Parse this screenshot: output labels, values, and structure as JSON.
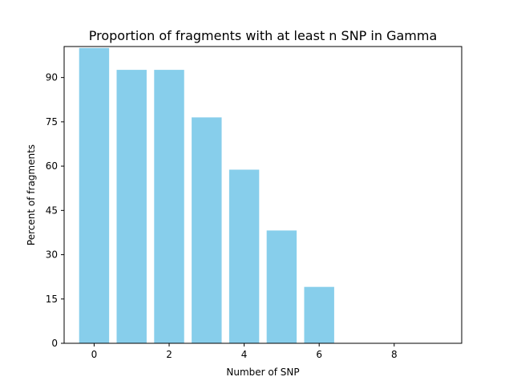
{
  "chart_data": {
    "type": "bar",
    "title": "Proportion of fragments with at least n SNP in Gamma",
    "xlabel": "Number of SNP",
    "ylabel": "Percent of fragments",
    "x": [
      0,
      1,
      2,
      3,
      4,
      5,
      6
    ],
    "values": [
      100,
      92.6,
      92.6,
      76.5,
      58.8,
      38.2,
      19.1
    ],
    "bar_color": "#87ceeb",
    "xlim": [
      -0.8,
      9.8
    ],
    "ylim": [
      0,
      100.5
    ],
    "x_ticks": [
      0,
      2,
      4,
      6,
      8
    ],
    "y_ticks": [
      0,
      15,
      30,
      45,
      60,
      75,
      90
    ],
    "grid": false,
    "legend": "none"
  }
}
